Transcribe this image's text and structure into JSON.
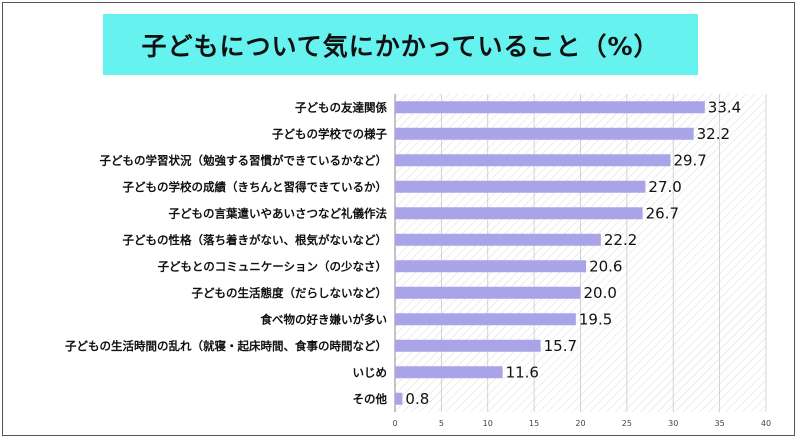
{
  "title": "子どもについて気にかかっていること（%）",
  "colors": {
    "title_bg": "#66f3f0",
    "bar": "#a9a4e8",
    "plot_bg": "#ffffff"
  },
  "chart_data": {
    "type": "bar",
    "orientation": "horizontal",
    "title": "子どもについて気にかかっていること（%）",
    "categories": [
      "子どもの友達関係",
      "子どもの学校での様子",
      "子どもの学習状況（勉強する習慣ができているかなど）",
      "子どもの学校の成績（きちんと習得できているか）",
      "子どもの言葉遣いやあいさつなど礼儀作法",
      "子どもの性格（落ち着きがない、根気がないなど）",
      "子どもとのコミュニケーション（の少なさ）",
      "子どもの生活態度（だらしないなど）",
      "食べ物の好き嫌いが多い",
      "子どもの生活時間の乱れ（就寝・起床時間、食事の時間など）",
      "いじめ",
      "その他"
    ],
    "values": [
      33.4,
      32.2,
      29.7,
      27.0,
      26.7,
      22.2,
      20.6,
      20.0,
      19.5,
      15.7,
      11.6,
      0.8
    ],
    "value_labels": [
      "33.4",
      "32.2",
      "29.7",
      "27.0",
      "26.7",
      "22.2",
      "20.6",
      "20.0",
      "19.5",
      "15.7",
      "11.6",
      "0.8"
    ],
    "xlim": [
      0,
      40
    ],
    "x_ticks": [
      "0",
      "5",
      "10",
      "15",
      "20",
      "25",
      "30",
      "35",
      "40"
    ],
    "grid": true
  }
}
